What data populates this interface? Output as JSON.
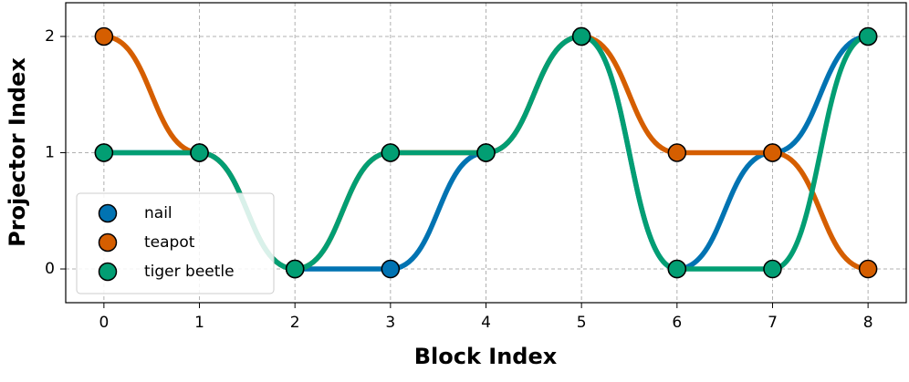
{
  "chart_data": {
    "type": "line",
    "x_label": "Block Index",
    "y_label": "Projector Index",
    "x": [
      0,
      1,
      2,
      3,
      4,
      5,
      6,
      7,
      8
    ],
    "series": [
      {
        "name": "nail",
        "color": "#0173b2",
        "values": [
          1,
          1,
          0,
          0,
          1,
          2,
          0,
          1,
          2
        ]
      },
      {
        "name": "teapot",
        "color": "#d55e00",
        "values": [
          2,
          1,
          0,
          1,
          1,
          2,
          1,
          1,
          0
        ]
      },
      {
        "name": "tiger beetle",
        "color": "#029e73",
        "values": [
          1,
          1,
          0,
          1,
          1,
          2,
          0,
          0,
          2
        ]
      }
    ],
    "xlim": [
      -0.4,
      8.4
    ],
    "xticks": [
      0,
      1,
      2,
      3,
      4,
      5,
      6,
      7,
      8
    ],
    "ylim": [
      -0.29,
      2.29
    ],
    "yticks": [
      0,
      1,
      2
    ],
    "grid": true,
    "legend": "lower left"
  }
}
